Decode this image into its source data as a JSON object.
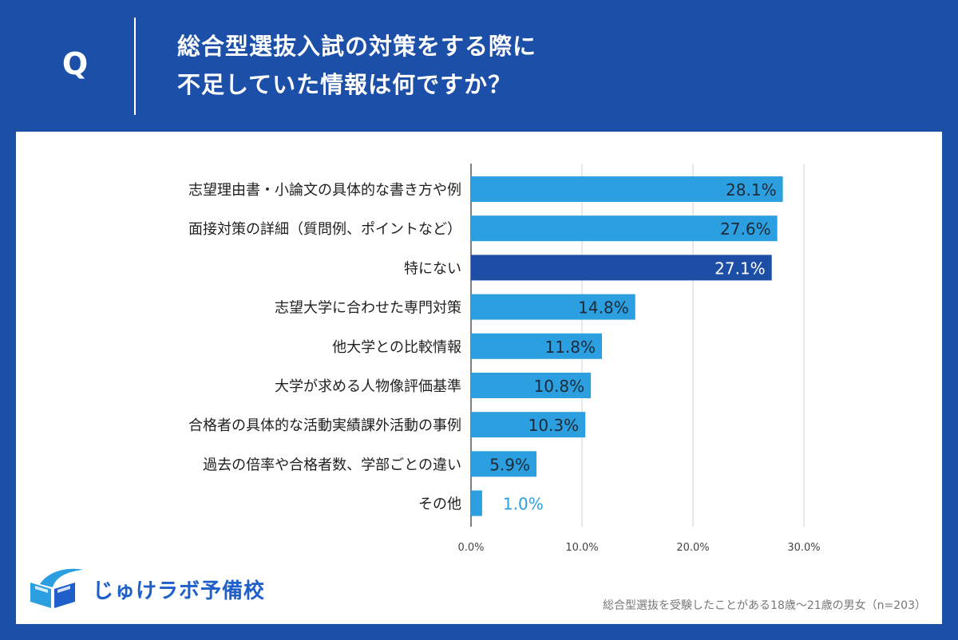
{
  "header": {
    "q_label": "Q",
    "question_line1": "総合型選抜入試の対策をする際に",
    "question_line2": "不足していた情報は何ですか？"
  },
  "colors": {
    "background": "#1b4fa8",
    "bar": "#2b9fe0",
    "bar_highlight": "#1c4ea6",
    "label_inside": "#1f2a36",
    "label_inside_highlight": "#ffffff",
    "label_outside": "#2b9fe0",
    "grid": "#d3d3d3"
  },
  "chart_data": {
    "type": "bar",
    "orientation": "horizontal",
    "categories": [
      "志望理由書・小論文の具体的な書き方や例",
      "面接対策の詳細（質問例、ポイントなど）",
      "特にない",
      "志望大学に合わせた専門対策",
      "他大学との比較情報",
      "大学が求める人物像評価基準",
      "合格者の具体的な活動実績課外活動の事例",
      "過去の倍率や合格者数、学部ごとの違い",
      "その他"
    ],
    "values": [
      28.1,
      27.6,
      27.1,
      14.8,
      11.8,
      10.8,
      10.3,
      5.9,
      1.0
    ],
    "value_labels": [
      "28.1%",
      "27.6%",
      "27.1%",
      "14.8%",
      "11.8%",
      "10.8%",
      "10.3%",
      "5.9%",
      "1.0%"
    ],
    "highlight_index": 2,
    "xlim": [
      0,
      30
    ],
    "xticks": [
      0,
      10,
      20,
      30
    ],
    "xtick_labels": [
      "0.0%",
      "10.0%",
      "20.0%",
      "30.0%"
    ],
    "grid": true
  },
  "brand": {
    "name": "じゅけラボ予備校"
  },
  "footnote": "総合型選抜を受験したことがある18歳〜21歳の男女（n=203）"
}
